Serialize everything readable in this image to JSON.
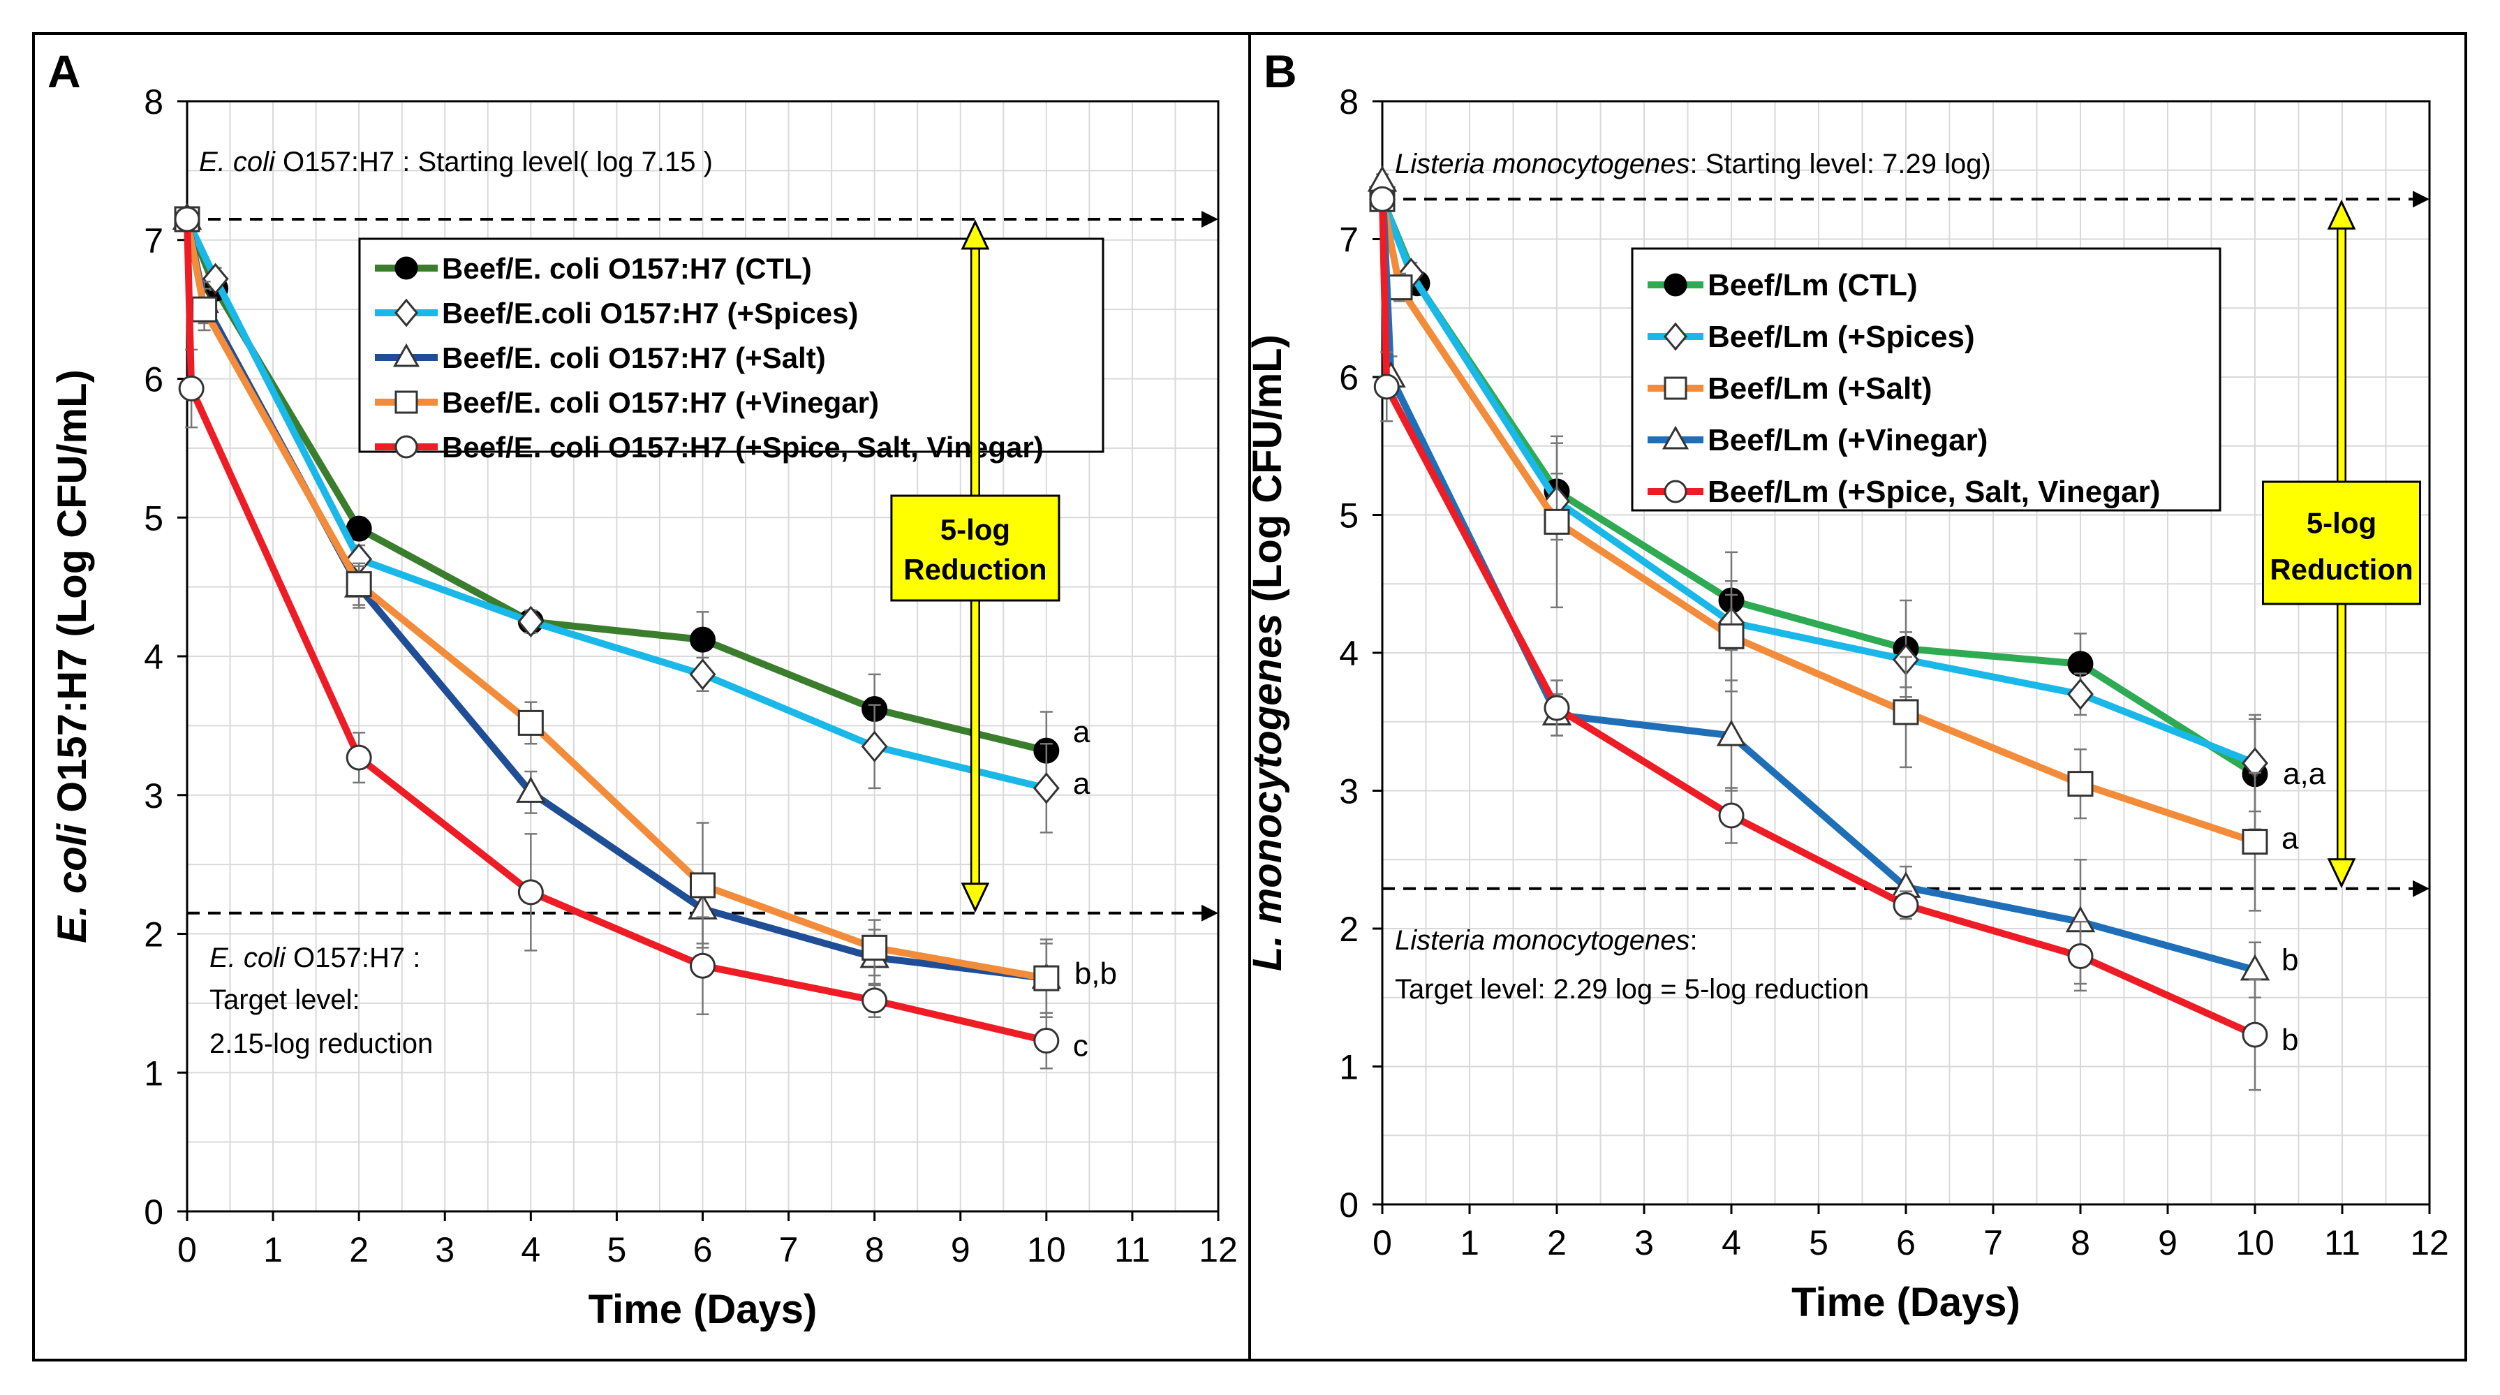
{
  "chart_data": [
    {
      "type": "line",
      "panel_label": "A",
      "xlabel": "Time (Days)",
      "ylabel_italic": "E. coli",
      "ylabel_rest": " O157:H7 (Log CFU/mL)",
      "xlim": [
        0,
        12
      ],
      "ylim": [
        0,
        8
      ],
      "xticks": [
        0,
        1,
        2,
        3,
        4,
        5,
        6,
        7,
        8,
        9,
        10,
        11,
        12
      ],
      "yticks": [
        0,
        1,
        2,
        3,
        4,
        5,
        6,
        7,
        8
      ],
      "grid": true,
      "legend_position": "top-center",
      "series": [
        {
          "name": "Beef/E. coli O157:H7  (CTL)",
          "color": "#3a7d2c",
          "marker": "filled-circle",
          "x": [
            0,
            0.33,
            2,
            4,
            6,
            8,
            10
          ],
          "y": [
            7.15,
            6.65,
            4.92,
            4.25,
            4.12,
            3.62,
            3.32
          ],
          "err": [
            0.05,
            0.08,
            0.08,
            0.08,
            0.2,
            0.25,
            0.28
          ]
        },
        {
          "name": "Beef/E.coli O157:H7  (+Spices)",
          "color": "#1ab8e8",
          "marker": "open-diamond",
          "x": [
            0,
            0.33,
            2,
            4,
            6,
            8,
            10
          ],
          "y": [
            7.15,
            6.72,
            4.7,
            4.25,
            3.87,
            3.35,
            3.05
          ],
          "err": [
            0.05,
            0.08,
            0.1,
            0.08,
            0.12,
            0.3,
            0.32
          ]
        },
        {
          "name": "Beef/E. coli O157:H7  (+Salt)",
          "color": "#1f4e96",
          "marker": "open-triangle",
          "x": [
            0,
            0.2,
            2,
            4,
            6,
            8,
            10
          ],
          "y": [
            7.15,
            6.55,
            4.5,
            3.02,
            2.18,
            1.83,
            1.68
          ],
          "err": [
            0.05,
            0.15,
            0.15,
            0.15,
            0.25,
            0.2,
            0.28
          ]
        },
        {
          "name": "Beef/E. coli O157:H7  (+Vinegar)",
          "color": "#f28c3a",
          "marker": "open-square",
          "x": [
            0,
            0.2,
            2,
            4,
            6,
            8,
            10
          ],
          "y": [
            7.15,
            6.5,
            4.52,
            3.52,
            2.35,
            1.9,
            1.68
          ],
          "err": [
            0.05,
            0.15,
            0.15,
            0.15,
            0.45,
            0.2,
            0.25
          ]
        },
        {
          "name": "Beef/E. coli O157:H7  (+Spice, Salt, Vinegar)",
          "color": "#ee1c25",
          "marker": "open-circle",
          "x": [
            0,
            0.05,
            2,
            4,
            6,
            8,
            10
          ],
          "y": [
            7.15,
            5.93,
            3.27,
            2.3,
            1.77,
            1.52,
            1.23
          ],
          "err": [
            0.05,
            0.28,
            0.18,
            0.42,
            0.35,
            0.12,
            0.2
          ]
        }
      ],
      "end_labels": [
        "a",
        "a",
        "b,b",
        "c"
      ],
      "annotations": {
        "start_italic": "E. coli",
        "start_rest": " O157:H7 :  Starting level( log 7.15 )",
        "start_level": 7.15,
        "target_line1_italic": "E. coli",
        "target_line1_rest": " O157:H7 :",
        "target_line2": "Target level:",
        "target_line3": "2.15-log reduction",
        "target_level": 2.15,
        "reduction_line1": "5-log",
        "reduction_line2": "Reduction",
        "arrow_x": 11
      }
    },
    {
      "type": "line",
      "panel_label": "B",
      "xlabel": "Time (Days)",
      "ylabel_italic": "L. monocytogenes",
      "ylabel_rest": " (Log CFU/mL)",
      "xlim": [
        0,
        12
      ],
      "ylim": [
        0,
        8
      ],
      "xticks": [
        0,
        1,
        2,
        3,
        4,
        5,
        6,
        7,
        8,
        9,
        10,
        11,
        12
      ],
      "yticks": [
        0,
        1,
        2,
        3,
        4,
        5,
        6,
        7,
        8
      ],
      "grid": true,
      "legend_position": "top-center",
      "series": [
        {
          "name": "Beef/Lm (CTL)",
          "color": "#2eab52",
          "marker": "filled-circle",
          "x": [
            0,
            0.4,
            2,
            4,
            6,
            8,
            10
          ],
          "y": [
            7.29,
            6.68,
            5.17,
            4.38,
            4.03,
            3.92,
            3.12
          ],
          "err": [
            0.05,
            0.08,
            0.35,
            0.35,
            0.35,
            0.22,
            0.4
          ]
        },
        {
          "name": "Beef/Lm (+Spices)",
          "color": "#1ab8e8",
          "marker": "open-diamond",
          "x": [
            0,
            0.33,
            2,
            4,
            6,
            8,
            10
          ],
          "y": [
            7.29,
            6.75,
            5.1,
            4.22,
            3.95,
            3.7,
            3.2
          ],
          "err": [
            0.05,
            0.08,
            0.2,
            0.2,
            0.2,
            0.15,
            0.35
          ]
        },
        {
          "name": "Beef/Lm (+Salt)",
          "color": "#f28c3a",
          "marker": "open-square",
          "x": [
            0,
            0.2,
            2,
            4,
            6,
            8,
            10
          ],
          "y": [
            7.29,
            6.65,
            4.95,
            4.12,
            3.57,
            3.05,
            2.63
          ],
          "err": [
            0.05,
            0.1,
            0.62,
            0.4,
            0.4,
            0.25,
            0.5
          ]
        },
        {
          "name": "Beef/Lm (+Vinegar)",
          "color": "#1f6fb8",
          "marker": "open-triangle",
          "x": [
            0,
            0.1,
            2,
            4,
            6,
            8,
            10
          ],
          "y": [
            7.42,
            6.0,
            3.55,
            3.4,
            2.3,
            2.05,
            1.7
          ],
          "err": [
            0.05,
            0.15,
            0.15,
            0.4,
            0.15,
            0.45,
            0.2
          ]
        },
        {
          "name": "Beef/Lm (+Spice, Salt, Vinegar)",
          "color": "#ee1c25",
          "marker": "open-circle",
          "x": [
            0,
            0.05,
            2,
            4,
            6,
            8,
            10
          ],
          "y": [
            7.29,
            5.93,
            3.6,
            2.82,
            2.17,
            1.8,
            1.23
          ],
          "err": [
            0.05,
            0.25,
            0.2,
            0.2,
            0.1,
            0.25,
            0.4
          ]
        }
      ],
      "end_labels": [
        "a,a",
        "a",
        "b",
        "b"
      ],
      "annotations": {
        "start_italic": "Listeria monocytogenes",
        "start_rest": ": Starting level: 7.29 log)",
        "start_level": 7.29,
        "target_line1_italic": "Listeria monocytogenes",
        "target_line1_rest": ":",
        "target_line2": "Target level: 2.29 log = 5-log reduction",
        "target_level": 2.29,
        "reduction_line1": "5-log",
        "reduction_line2": "Reduction",
        "arrow_x": 11
      }
    }
  ]
}
